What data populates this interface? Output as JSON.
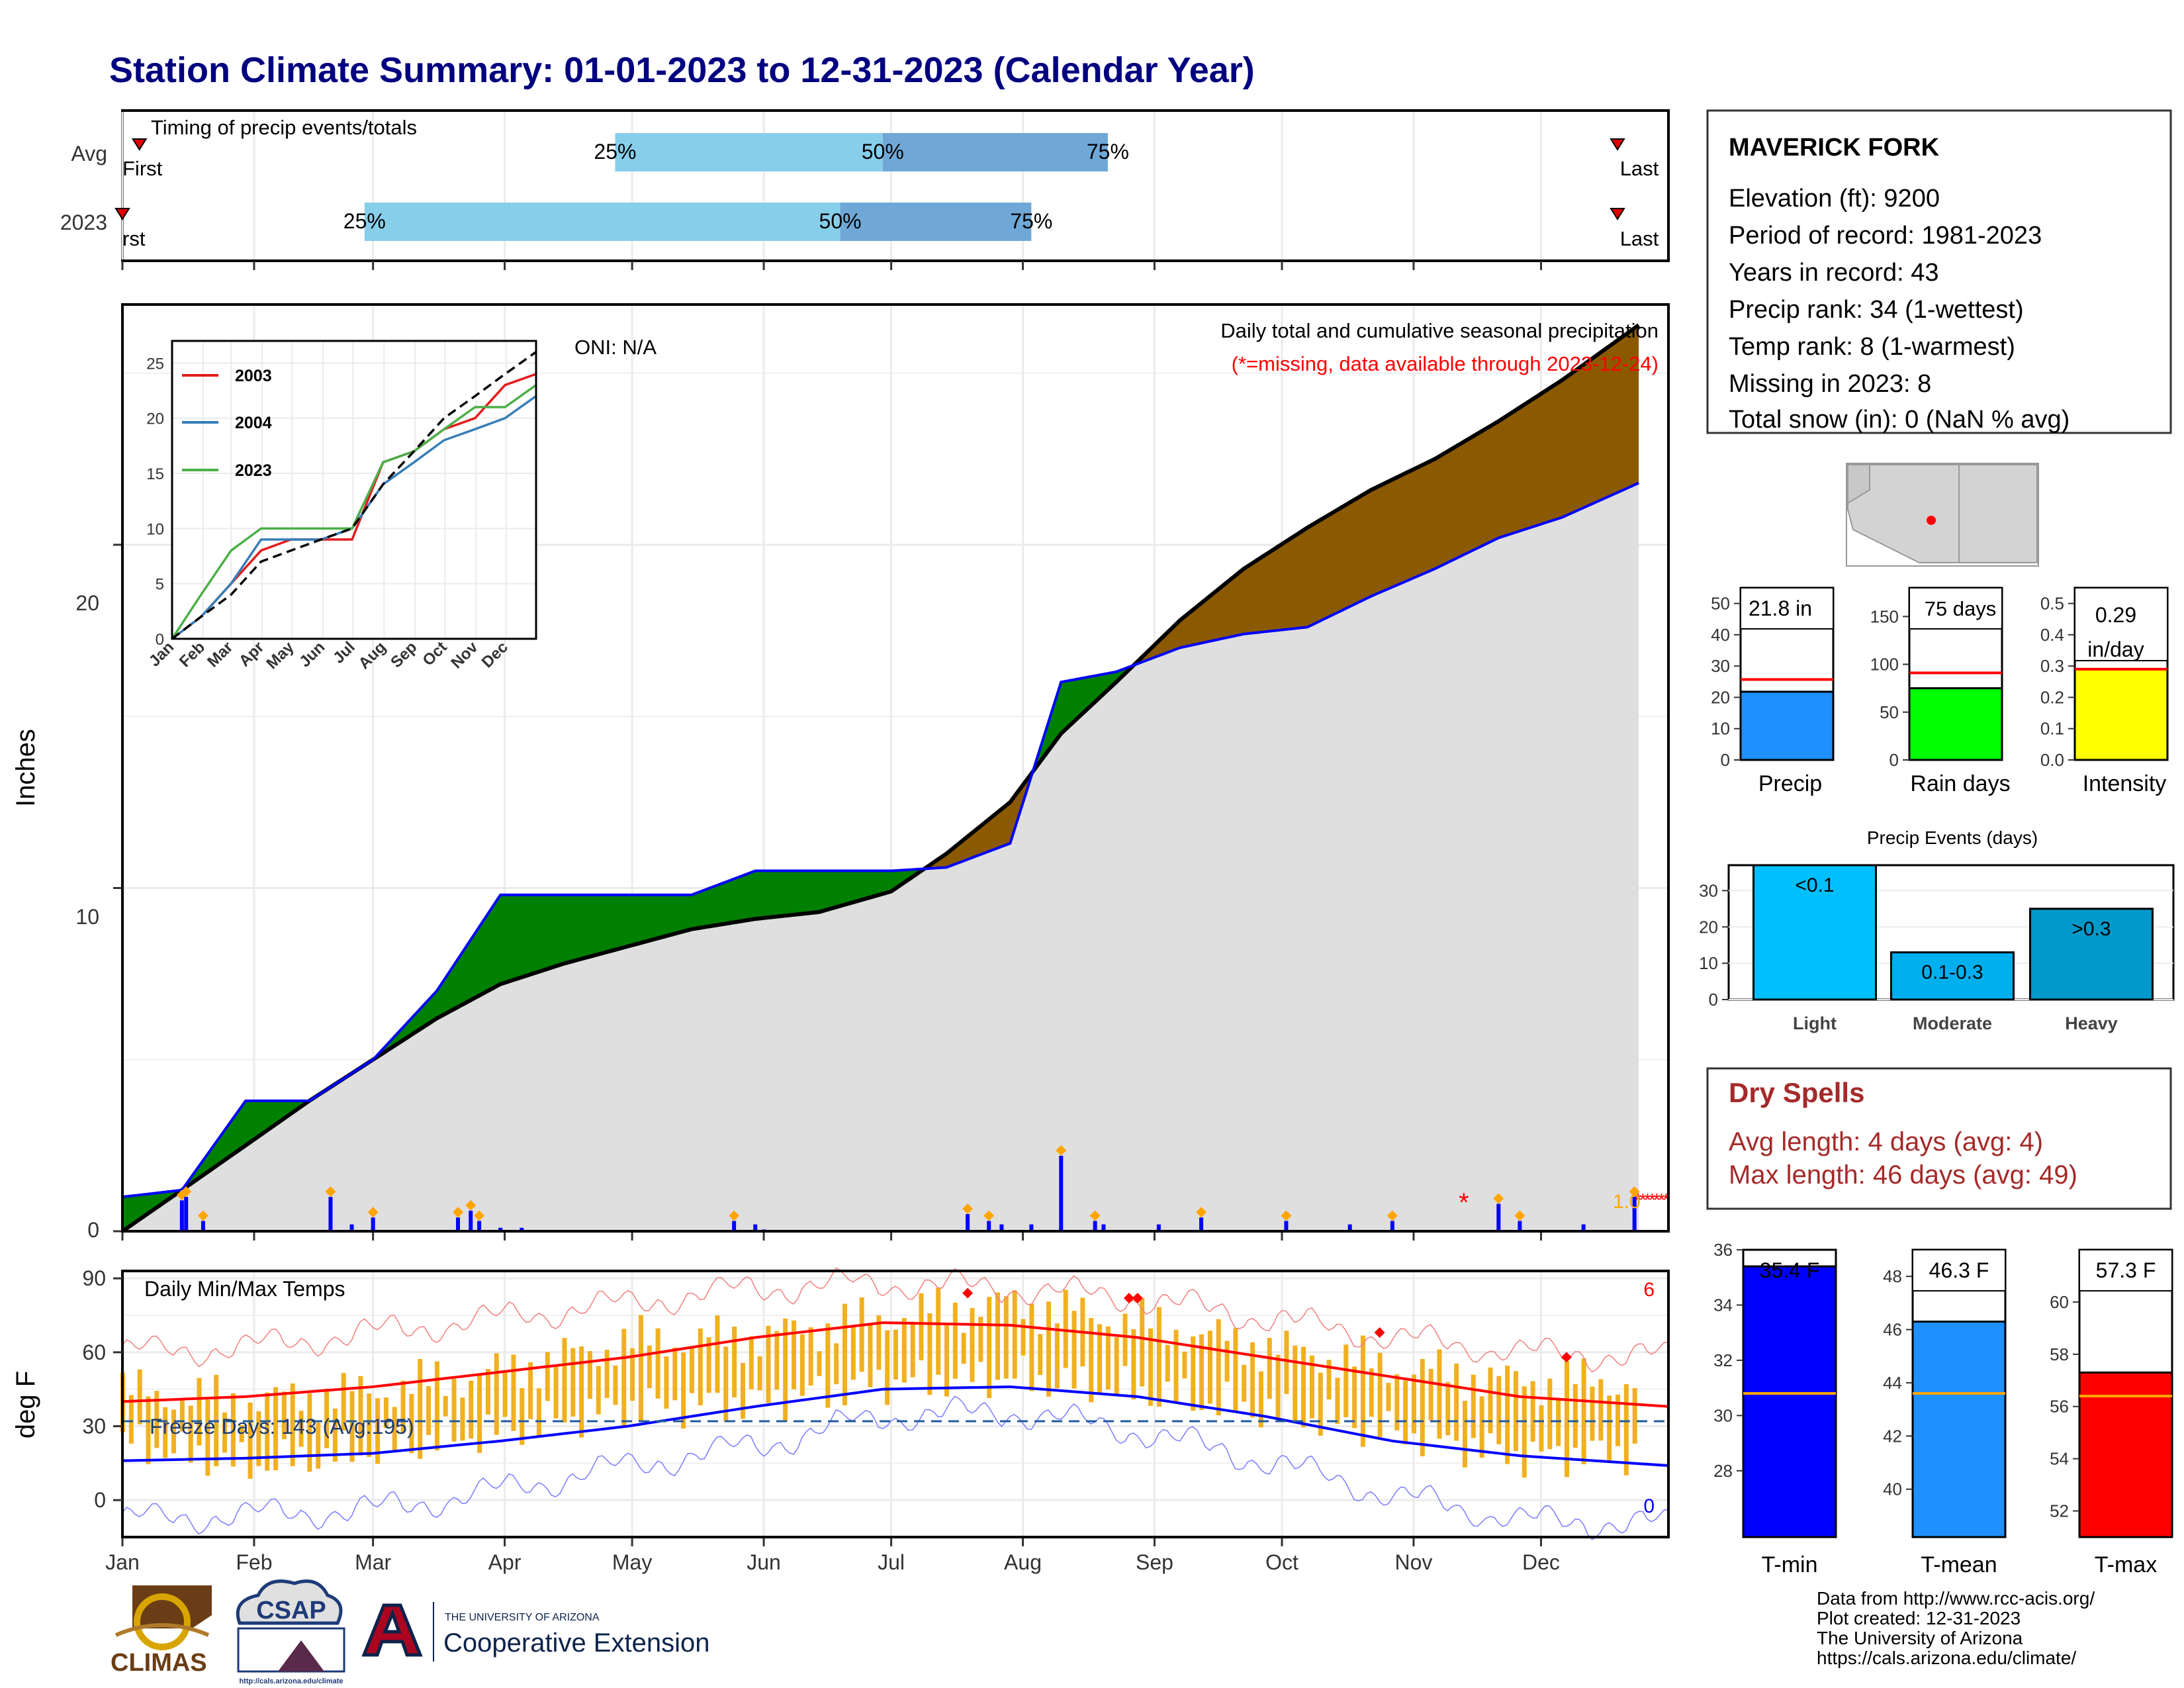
{
  "title": "Station Climate Summary: 01-01-2023 to 12-31-2023 (Calendar Year)",
  "colors": {
    "title": "#000080",
    "gray_fill": "#dfdfdf",
    "brown": "#8b5a00",
    "green": "#008000",
    "blue": "#0000ff",
    "orange": "#ffa500",
    "red": "#ff0000",
    "light_blue": "#87ceeb",
    "mid_blue": "#6fa8d6",
    "dry_red": "#a52a2a"
  },
  "timing": {
    "label": "Timing of precip events/totals",
    "rows": [
      "Avg",
      "2023"
    ],
    "pct_labels": [
      "25%",
      "50%",
      "75%"
    ],
    "first_label": "First",
    "first_label_2023": "rst",
    "last_label": "Last"
  },
  "main": {
    "ylabel": "Inches",
    "yticks": [
      "0",
      "10",
      "20"
    ],
    "oni": "ONI: N/A",
    "subtitle": "Daily total and cumulative seasonal precipitation",
    "missing_note": "(*=missing, data available through 2023-12-24)",
    "missing_marker": "*",
    "end_label": "1.0"
  },
  "inset": {
    "yticks": [
      "0",
      "5",
      "10",
      "15",
      "20",
      "25"
    ],
    "months": [
      "Jan",
      "Feb",
      "Mar",
      "Apr",
      "May",
      "Jun",
      "Jul",
      "Aug",
      "Sep",
      "Oct",
      "Nov",
      "Dec"
    ],
    "legend": [
      {
        "name": "2003",
        "color": "#e41a1c"
      },
      {
        "name": "2004",
        "color": "#377eb8"
      },
      {
        "name": "2023",
        "color": "#4daf4a"
      }
    ]
  },
  "temps": {
    "label": "Daily Min/Max Temps",
    "ylabel": "deg F",
    "yticks": [
      "0",
      "30",
      "60",
      "90"
    ],
    "freeze": "Freeze Days: 143 (Avg:195)",
    "count_max": "6",
    "count_min": "0"
  },
  "months": [
    "Jan",
    "Feb",
    "Mar",
    "Apr",
    "May",
    "Jun",
    "Jul",
    "Aug",
    "Sep",
    "Oct",
    "Nov",
    "Dec"
  ],
  "station": {
    "name": "MAVERICK FORK",
    "lines": [
      "Elevation (ft): 9200",
      "Period of record: 1981-2023",
      "Years in record: 43",
      "Precip rank: 34 (1-wettest)",
      "Temp rank: 8 (1-warmest)",
      "Missing in 2023: 8",
      "Total snow (in): 0 (NaN % avg)"
    ]
  },
  "small_bars": [
    {
      "label": "Precip",
      "value_text": "21.8 in",
      "yticks": [
        "0",
        "10",
        "20",
        "30",
        "40",
        "50"
      ]
    },
    {
      "label": "Rain days",
      "value_text": "75 days",
      "yticks": [
        "0",
        "50",
        "100",
        "150"
      ]
    },
    {
      "label": "Intensity",
      "value_text": "0.29",
      "value_text2": "in/day",
      "yticks": [
        "0.0",
        "0.1",
        "0.2",
        "0.3",
        "0.4",
        "0.5"
      ]
    }
  ],
  "events": {
    "title": "Precip Events (days)",
    "yticks": [
      "0",
      "10",
      "20",
      "30"
    ],
    "categories": [
      "Light",
      "Moderate",
      "Heavy"
    ],
    "bar_labels": [
      "<0.1",
      "0.1-0.3",
      ">0.3"
    ]
  },
  "dry": {
    "title": "Dry Spells",
    "avg": "Avg length: 4 days (avg: 4)",
    "max": "Max length: 46 days (avg: 49)"
  },
  "temp_bars": [
    {
      "label": "T-min",
      "value_text": "35.4 F",
      "yticks": [
        "28",
        "30",
        "32",
        "34",
        "36"
      ]
    },
    {
      "label": "T-mean",
      "value_text": "46.3 F",
      "yticks": [
        "40",
        "42",
        "44",
        "46",
        "48"
      ]
    },
    {
      "label": "T-max",
      "value_text": "57.3 F",
      "yticks": [
        "52",
        "54",
        "56",
        "58",
        "60"
      ]
    }
  ],
  "footer": [
    "Data from http://www.rcc-acis.org/",
    "Plot created: 12-31-2023",
    "The University of Arizona",
    "https://cals.arizona.edu/climate/"
  ],
  "logos": {
    "climas": "CLIMAS",
    "csap": "CSAP",
    "csap_url": "http://cals.arizona.edu/climate",
    "ua_small": "THE UNIVERSITY OF ARIZONA",
    "ua_big": "Cooperative Extension"
  },
  "chart_data": [
    {
      "type": "bar",
      "name": "timing",
      "categories": [
        "Avg",
        "2023"
      ],
      "series": [
        {
          "name": "25%",
          "values": [
            117,
            58
          ]
        },
        {
          "name": "50%",
          "values": [
            180,
            170
          ]
        },
        {
          "name": "75%",
          "values": [
            233,
            215
          ]
        },
        {
          "name": "First",
          "values": [
            5,
            1
          ]
        },
        {
          "name": "Last",
          "values": [
            353,
            353
          ]
        }
      ],
      "xlim": [
        1,
        365
      ]
    },
    {
      "type": "area",
      "name": "cumulative precipitation",
      "ylabel": "Inches",
      "ylim": [
        0,
        27
      ],
      "x": [
        1,
        15,
        30,
        45,
        60,
        75,
        90,
        105,
        120,
        135,
        150,
        165,
        182,
        195,
        210,
        222,
        235,
        250,
        265,
        280,
        295,
        310,
        325,
        340,
        358
      ],
      "series": [
        {
          "name": "2023",
          "values": [
            1.0,
            1.2,
            3.8,
            3.8,
            5.0,
            7.0,
            9.8,
            9.8,
            9.8,
            9.8,
            10.5,
            10.5,
            10.5,
            10.6,
            11.3,
            16.0,
            16.3,
            17.0,
            17.4,
            17.6,
            18.5,
            19.3,
            20.2,
            20.8,
            21.8
          ]
        },
        {
          "name": "Avg",
          "values": [
            0.0,
            1.2,
            2.5,
            3.8,
            5.0,
            6.2,
            7.2,
            7.8,
            8.3,
            8.8,
            9.1,
            9.3,
            9.9,
            11.0,
            12.5,
            14.5,
            16.0,
            17.8,
            19.3,
            20.5,
            21.6,
            22.5,
            23.6,
            24.8,
            26.4
          ]
        }
      ]
    },
    {
      "type": "bar",
      "name": "daily precipitation",
      "ylabel": "Inches",
      "x": [
        15,
        16,
        20,
        50,
        55,
        60,
        80,
        83,
        85,
        90,
        95,
        145,
        150,
        152,
        200,
        205,
        208,
        215,
        222,
        230,
        232,
        245,
        255,
        275,
        290,
        300,
        325,
        330,
        345,
        357
      ],
      "values": [
        0.9,
        1.0,
        0.3,
        1.0,
        0.2,
        0.4,
        0.4,
        0.6,
        0.3,
        0.1,
        0.1,
        0.3,
        0.2,
        0.05,
        0.5,
        0.3,
        0.2,
        0.2,
        2.2,
        0.3,
        0.2,
        0.2,
        0.4,
        0.3,
        0.2,
        0.3,
        0.8,
        0.3,
        0.2,
        1.0
      ]
    },
    {
      "type": "line",
      "name": "daily min/max temps",
      "ylabel": "deg F",
      "ylim": [
        -15,
        93
      ],
      "x": [
        1,
        30,
        60,
        90,
        120,
        150,
        180,
        210,
        240,
        270,
        300,
        330,
        365
      ],
      "series": [
        {
          "name": "avg max",
          "values": [
            40,
            42,
            46,
            52,
            58,
            66,
            72,
            71,
            66,
            58,
            50,
            42,
            38
          ]
        },
        {
          "name": "avg min",
          "values": [
            16,
            17,
            19,
            24,
            30,
            38,
            45,
            46,
            42,
            34,
            24,
            18,
            14
          ]
        },
        {
          "name": "record max",
          "values": [
            60,
            62,
            68,
            74,
            80,
            86,
            88,
            86,
            82,
            74,
            66,
            60,
            58
          ]
        },
        {
          "name": "record min",
          "values": [
            -8,
            -6,
            -4,
            4,
            14,
            22,
            34,
            36,
            28,
            16,
            2,
            -8,
            -10
          ]
        },
        {
          "name": "2023 max",
          "values": [
            44,
            40,
            44,
            52,
            64,
            66,
            74,
            80,
            72,
            62,
            54,
            48,
            48
          ]
        },
        {
          "name": "2023 min",
          "values": [
            24,
            14,
            20,
            28,
            38,
            40,
            48,
            50,
            44,
            36,
            28,
            18,
            20
          ]
        },
        {
          "name": "freeze line",
          "values": [
            32,
            32,
            32,
            32,
            32,
            32,
            32,
            32,
            32,
            32,
            32,
            32,
            32
          ]
        }
      ]
    },
    {
      "type": "line",
      "name": "inset cumulative",
      "xlabel": "",
      "ylim": [
        0,
        27
      ],
      "x": [
        1,
        30,
        60,
        90,
        120,
        150,
        181,
        212,
        243,
        273,
        304,
        334,
        365
      ],
      "series": [
        {
          "name": "2003",
          "values": [
            0,
            2,
            5,
            8,
            9,
            9,
            9,
            16,
            17,
            19,
            20,
            23,
            24
          ]
        },
        {
          "name": "2004",
          "values": [
            0,
            2,
            5,
            9,
            9,
            9,
            10,
            14,
            16,
            18,
            19,
            20,
            22
          ]
        },
        {
          "name": "2023",
          "values": [
            0,
            4,
            8,
            10,
            10,
            10,
            10,
            16,
            17,
            19,
            21,
            21,
            23
          ]
        },
        {
          "name": "Avg",
          "values": [
            0,
            2,
            4,
            7,
            8,
            9,
            10,
            14,
            17,
            20,
            22,
            24,
            26
          ]
        }
      ]
    },
    {
      "type": "bar",
      "name": "Precip",
      "value": 21.8,
      "avg": 25.7,
      "ylim": [
        0,
        55
      ]
    },
    {
      "type": "bar",
      "name": "Rain days",
      "value": 75,
      "avg": 91,
      "ylim": [
        0,
        180
      ]
    },
    {
      "type": "bar",
      "name": "Intensity",
      "value": 0.29,
      "avg": 0.29,
      "ylim": [
        0,
        0.55
      ]
    },
    {
      "type": "bar",
      "name": "Precip Events (days)",
      "categories": [
        "Light",
        "Moderate",
        "Heavy"
      ],
      "values": [
        37,
        13,
        25
      ],
      "ylim": [
        0,
        37
      ]
    },
    {
      "type": "bar",
      "name": "T-min",
      "value": 35.4,
      "avg": 30.8,
      "ylim": [
        25.6,
        36
      ]
    },
    {
      "type": "bar",
      "name": "T-mean",
      "value": 46.3,
      "avg": 43.6,
      "ylim": [
        38.2,
        49
      ]
    },
    {
      "type": "bar",
      "name": "T-max",
      "value": 57.3,
      "avg": 56.4,
      "ylim": [
        51,
        62
      ]
    }
  ]
}
